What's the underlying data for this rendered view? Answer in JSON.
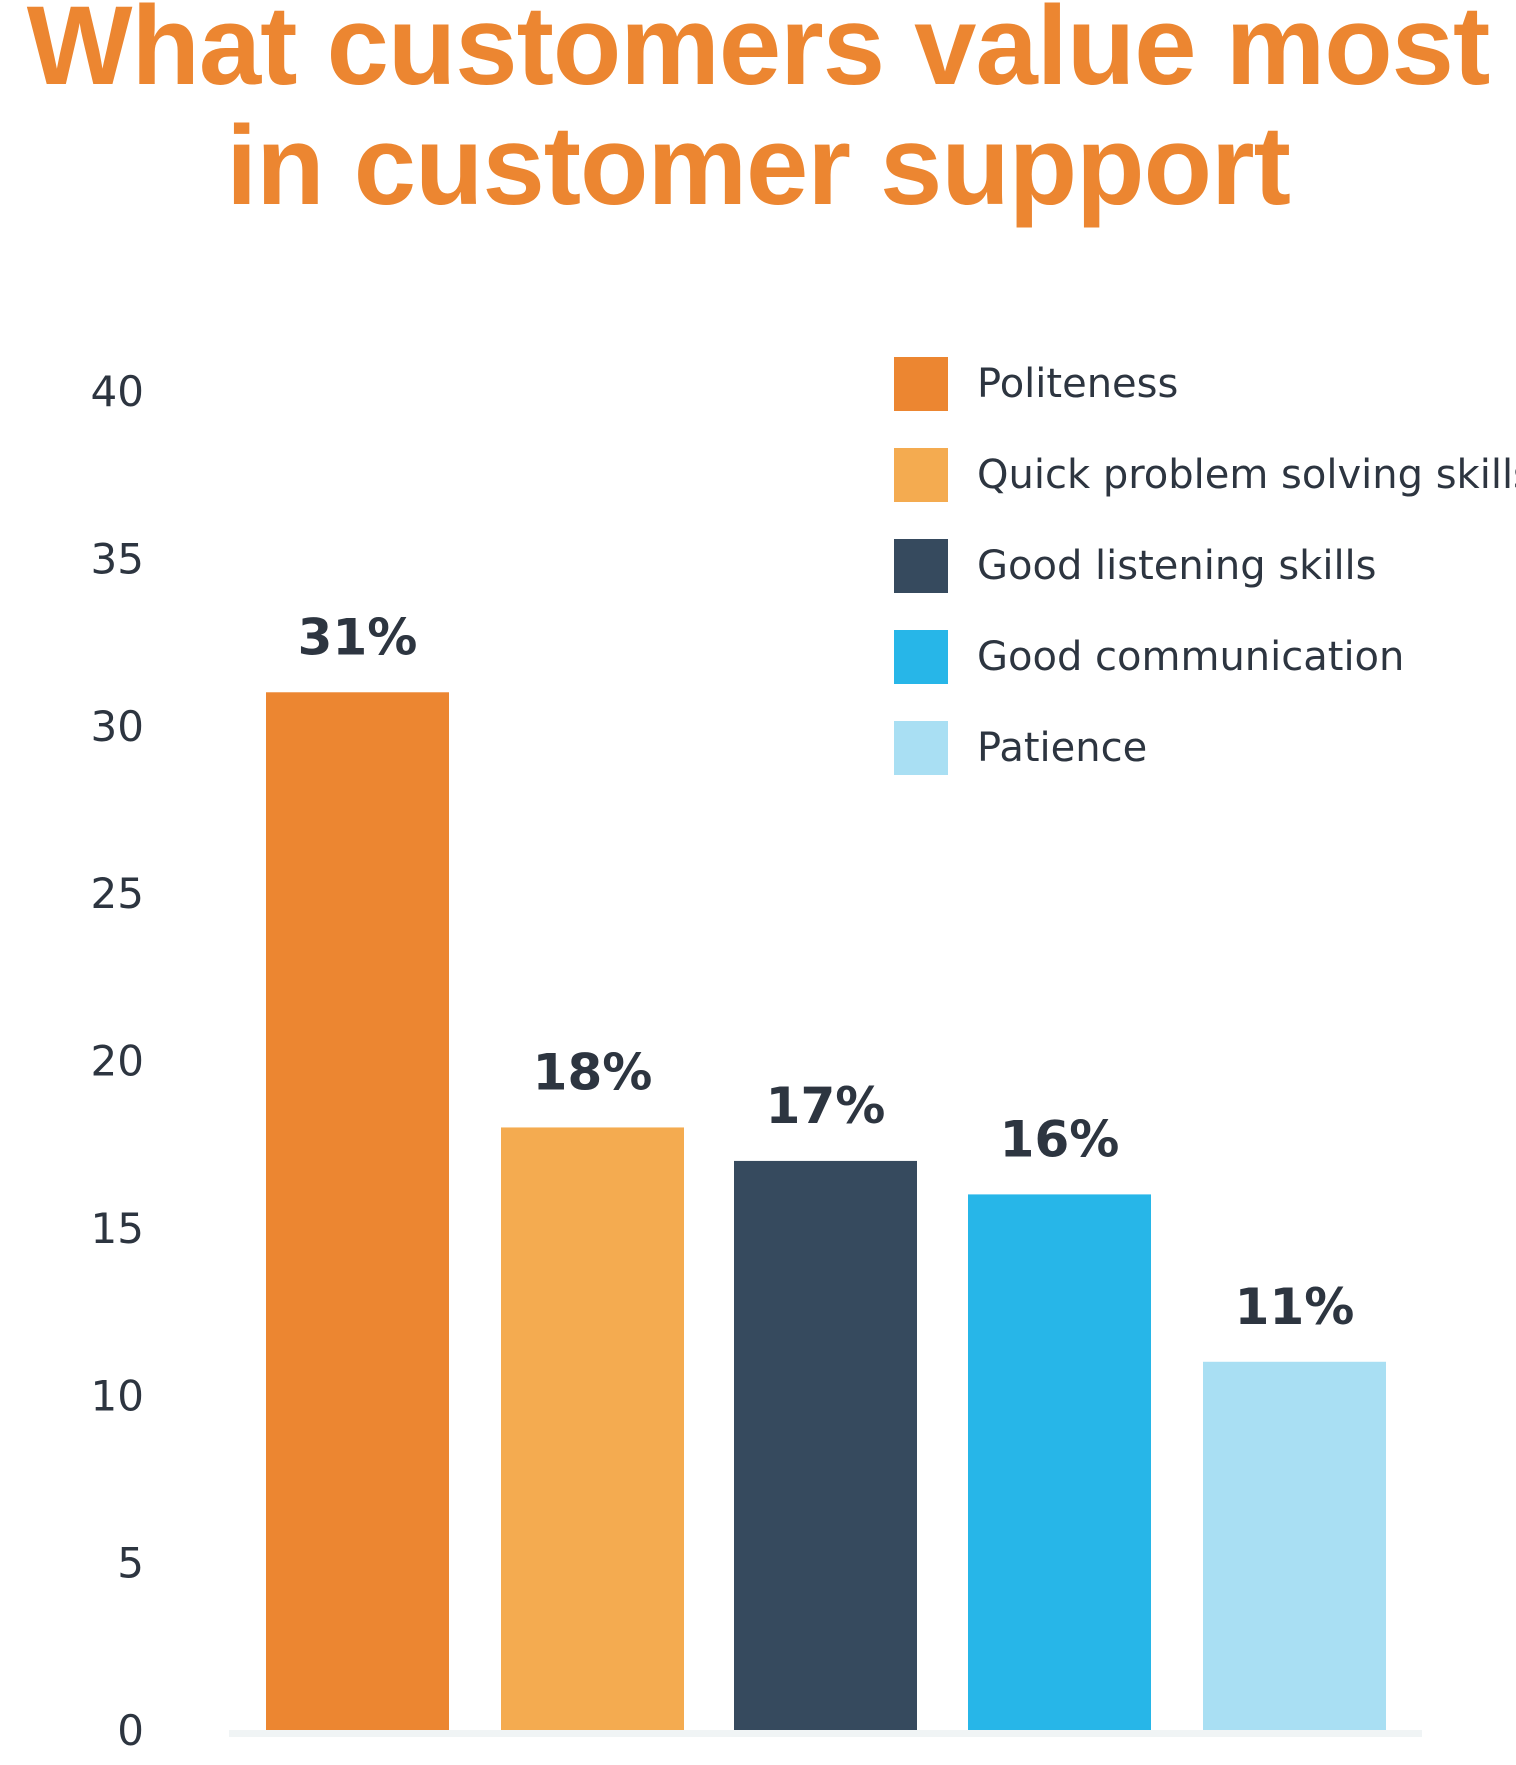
{
  "chart_data": {
    "type": "bar",
    "title": "What customers value most in customer support",
    "title_lines": [
      "What customers value most",
      "in customer support"
    ],
    "categories": [
      "Politeness",
      "Quick problem solving skills",
      "Good listening skills",
      "Good communication",
      "Patience"
    ],
    "values": [
      31,
      18,
      17,
      16,
      11
    ],
    "value_labels": [
      "31%",
      "18%",
      "17%",
      "16%",
      "11%"
    ],
    "colors": [
      "#ec8631",
      "#f4ab50",
      "#364a5e",
      "#27b6e8",
      "#a9dff3"
    ],
    "xlabel": "",
    "ylabel": "",
    "ylim": [
      0,
      40
    ],
    "yticks": [
      0,
      5,
      10,
      15,
      20,
      25,
      30,
      35,
      40
    ],
    "grid": false,
    "legend_position": "top-right"
  }
}
